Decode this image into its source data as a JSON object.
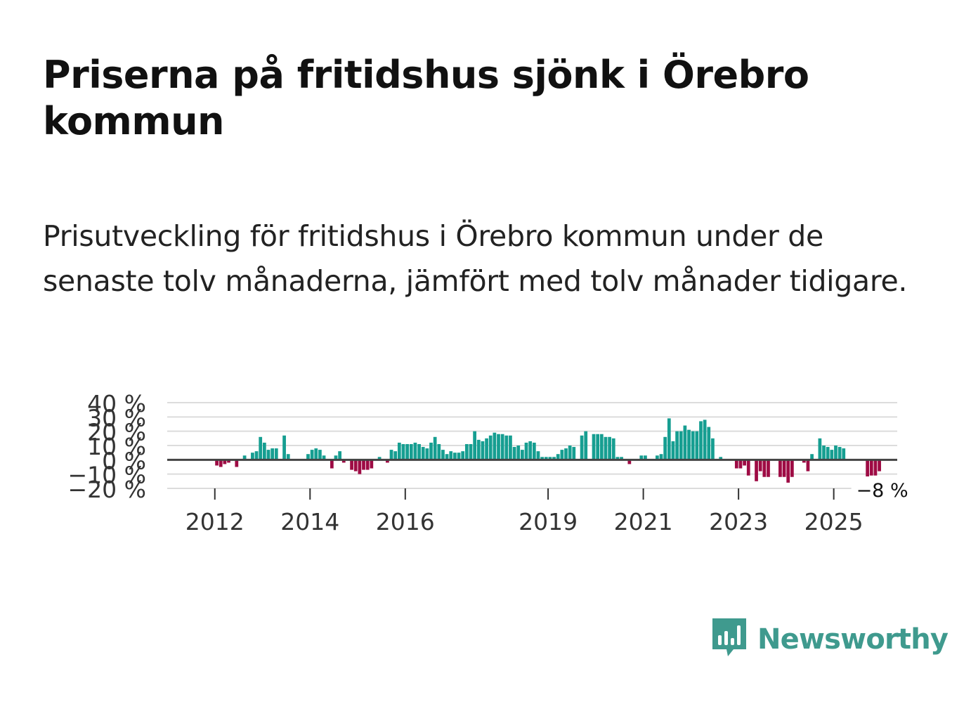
{
  "title": "Priserna på fritidshus sjönk i Örebro kommun",
  "subtitle": "Prisutveckling för fritidshus i Örebro kommun under de senaste tolv månaderna, jämfört med tolv månader tidigare.",
  "brand": {
    "name": "Newsworthy",
    "icon": "newsworthy-logo-icon"
  },
  "colors": {
    "positive": "#169e91",
    "negative": "#9e0b44",
    "grid": "#dcdcdc",
    "baseline": "#444444",
    "brand": "#3f9a8e"
  },
  "chart_data": {
    "type": "bar",
    "x_start": "2011-01",
    "x_end": "2026-04",
    "x_ticks": [
      "2012",
      "2014",
      "2016",
      "2019",
      "2021",
      "2023",
      "2025"
    ],
    "y_ticks": [
      "40 %",
      "30 %",
      "20 %",
      "10 %",
      "0 %",
      "−10 %",
      "−20 %"
    ],
    "ylim": [
      -20,
      40
    ],
    "grid": true,
    "last_value_label": "−8 %",
    "series": [
      {
        "values": [
          {
            "x": "2011-01",
            "y": null
          },
          {
            "x": "2011-02",
            "y": null
          },
          {
            "x": "2011-03",
            "y": null
          },
          {
            "x": "2011-04",
            "y": null
          },
          {
            "x": "2011-05",
            "y": null
          },
          {
            "x": "2011-06",
            "y": null
          },
          {
            "x": "2011-07",
            "y": null
          },
          {
            "x": "2011-08",
            "y": null
          },
          {
            "x": "2011-09",
            "y": null
          },
          {
            "x": "2011-10",
            "y": null
          },
          {
            "x": "2011-11",
            "y": null
          },
          {
            "x": "2011-12",
            "y": null
          },
          {
            "x": "2012-01",
            "y": -4
          },
          {
            "x": "2012-02",
            "y": -5
          },
          {
            "x": "2012-03",
            "y": -3
          },
          {
            "x": "2012-04",
            "y": -2
          },
          {
            "x": "2012-05",
            "y": null
          },
          {
            "x": "2012-06",
            "y": -5
          },
          {
            "x": "2012-07",
            "y": null
          },
          {
            "x": "2012-08",
            "y": 3
          },
          {
            "x": "2012-09",
            "y": null
          },
          {
            "x": "2012-10",
            "y": 5
          },
          {
            "x": "2012-11",
            "y": 6
          },
          {
            "x": "2012-12",
            "y": 16
          },
          {
            "x": "2013-01",
            "y": 12
          },
          {
            "x": "2013-02",
            "y": 7
          },
          {
            "x": "2013-03",
            "y": 8
          },
          {
            "x": "2013-04",
            "y": 8
          },
          {
            "x": "2013-05",
            "y": null
          },
          {
            "x": "2013-06",
            "y": 17
          },
          {
            "x": "2013-07",
            "y": 4
          },
          {
            "x": "2013-08",
            "y": null
          },
          {
            "x": "2013-09",
            "y": null
          },
          {
            "x": "2013-10",
            "y": null
          },
          {
            "x": "2013-11",
            "y": null
          },
          {
            "x": "2013-12",
            "y": 4
          },
          {
            "x": "2014-01",
            "y": 7
          },
          {
            "x": "2014-02",
            "y": 8
          },
          {
            "x": "2014-03",
            "y": 7
          },
          {
            "x": "2014-04",
            "y": 3
          },
          {
            "x": "2014-05",
            "y": null
          },
          {
            "x": "2014-06",
            "y": -6
          },
          {
            "x": "2014-07",
            "y": 3
          },
          {
            "x": "2014-08",
            "y": 6
          },
          {
            "x": "2014-09",
            "y": -2
          },
          {
            "x": "2014-10",
            "y": null
          },
          {
            "x": "2014-11",
            "y": -7
          },
          {
            "x": "2014-12",
            "y": -8
          },
          {
            "x": "2015-01",
            "y": -10
          },
          {
            "x": "2015-02",
            "y": -7
          },
          {
            "x": "2015-03",
            "y": -7
          },
          {
            "x": "2015-04",
            "y": -6
          },
          {
            "x": "2015-05",
            "y": null
          },
          {
            "x": "2015-06",
            "y": 2
          },
          {
            "x": "2015-07",
            "y": null
          },
          {
            "x": "2015-08",
            "y": -2
          },
          {
            "x": "2015-09",
            "y": 7
          },
          {
            "x": "2015-10",
            "y": 6
          },
          {
            "x": "2015-11",
            "y": 12
          },
          {
            "x": "2015-12",
            "y": 11
          },
          {
            "x": "2016-01",
            "y": 11
          },
          {
            "x": "2016-02",
            "y": 11
          },
          {
            "x": "2016-03",
            "y": 12
          },
          {
            "x": "2016-04",
            "y": 11
          },
          {
            "x": "2016-05",
            "y": 9
          },
          {
            "x": "2016-06",
            "y": 8
          },
          {
            "x": "2016-07",
            "y": 12
          },
          {
            "x": "2016-08",
            "y": 16
          },
          {
            "x": "2016-09",
            "y": 11
          },
          {
            "x": "2016-10",
            "y": 7
          },
          {
            "x": "2016-11",
            "y": 4
          },
          {
            "x": "2016-12",
            "y": 6
          },
          {
            "x": "2017-01",
            "y": 5
          },
          {
            "x": "2017-02",
            "y": 5
          },
          {
            "x": "2017-03",
            "y": 6
          },
          {
            "x": "2017-04",
            "y": 11
          },
          {
            "x": "2017-05",
            "y": 11
          },
          {
            "x": "2017-06",
            "y": 20
          },
          {
            "x": "2017-07",
            "y": 14
          },
          {
            "x": "2017-08",
            "y": 13
          },
          {
            "x": "2017-09",
            "y": 15
          },
          {
            "x": "2017-10",
            "y": 17
          },
          {
            "x": "2017-11",
            "y": 19
          },
          {
            "x": "2017-12",
            "y": 18
          },
          {
            "x": "2018-01",
            "y": 18
          },
          {
            "x": "2018-02",
            "y": 17
          },
          {
            "x": "2018-03",
            "y": 17
          },
          {
            "x": "2018-04",
            "y": 9
          },
          {
            "x": "2018-05",
            "y": 10
          },
          {
            "x": "2018-06",
            "y": 7
          },
          {
            "x": "2018-07",
            "y": 12
          },
          {
            "x": "2018-08",
            "y": 13
          },
          {
            "x": "2018-09",
            "y": 12
          },
          {
            "x": "2018-10",
            "y": 6
          },
          {
            "x": "2018-11",
            "y": 2
          },
          {
            "x": "2018-12",
            "y": 2
          },
          {
            "x": "2019-01",
            "y": 2
          },
          {
            "x": "2019-02",
            "y": 2
          },
          {
            "x": "2019-03",
            "y": 4
          },
          {
            "x": "2019-04",
            "y": 7
          },
          {
            "x": "2019-05",
            "y": 8
          },
          {
            "x": "2019-06",
            "y": 10
          },
          {
            "x": "2019-07",
            "y": 9
          },
          {
            "x": "2019-08",
            "y": null
          },
          {
            "x": "2019-09",
            "y": 17
          },
          {
            "x": "2019-10",
            "y": 20
          },
          {
            "x": "2019-11",
            "y": null
          },
          {
            "x": "2019-12",
            "y": 18
          },
          {
            "x": "2020-01",
            "y": 18
          },
          {
            "x": "2020-02",
            "y": 18
          },
          {
            "x": "2020-03",
            "y": 16
          },
          {
            "x": "2020-04",
            "y": 16
          },
          {
            "x": "2020-05",
            "y": 15
          },
          {
            "x": "2020-06",
            "y": 2
          },
          {
            "x": "2020-07",
            "y": 2
          },
          {
            "x": "2020-08",
            "y": null
          },
          {
            "x": "2020-09",
            "y": -3
          },
          {
            "x": "2020-10",
            "y": null
          },
          {
            "x": "2020-11",
            "y": null
          },
          {
            "x": "2020-12",
            "y": 3
          },
          {
            "x": "2021-01",
            "y": 3
          },
          {
            "x": "2021-02",
            "y": null
          },
          {
            "x": "2021-03",
            "y": null
          },
          {
            "x": "2021-04",
            "y": 3
          },
          {
            "x": "2021-05",
            "y": 4
          },
          {
            "x": "2021-06",
            "y": 16
          },
          {
            "x": "2021-07",
            "y": 29
          },
          {
            "x": "2021-08",
            "y": 13
          },
          {
            "x": "2021-09",
            "y": 20
          },
          {
            "x": "2021-10",
            "y": 20
          },
          {
            "x": "2021-11",
            "y": 24
          },
          {
            "x": "2021-12",
            "y": 21
          },
          {
            "x": "2022-01",
            "y": 20
          },
          {
            "x": "2022-02",
            "y": 20
          },
          {
            "x": "2022-03",
            "y": 27
          },
          {
            "x": "2022-04",
            "y": 28
          },
          {
            "x": "2022-05",
            "y": 23
          },
          {
            "x": "2022-06",
            "y": 15
          },
          {
            "x": "2022-07",
            "y": null
          },
          {
            "x": "2022-08",
            "y": 2
          },
          {
            "x": "2022-09",
            "y": null
          },
          {
            "x": "2022-10",
            "y": null
          },
          {
            "x": "2022-11",
            "y": null
          },
          {
            "x": "2022-12",
            "y": -6
          },
          {
            "x": "2023-01",
            "y": -6
          },
          {
            "x": "2023-02",
            "y": -4
          },
          {
            "x": "2023-03",
            "y": -11
          },
          {
            "x": "2023-04",
            "y": null
          },
          {
            "x": "2023-05",
            "y": -15
          },
          {
            "x": "2023-06",
            "y": -8
          },
          {
            "x": "2023-07",
            "y": -12
          },
          {
            "x": "2023-08",
            "y": -12
          },
          {
            "x": "2023-09",
            "y": null
          },
          {
            "x": "2023-10",
            "y": null
          },
          {
            "x": "2023-11",
            "y": -12
          },
          {
            "x": "2023-12",
            "y": -12
          },
          {
            "x": "2024-01",
            "y": -16
          },
          {
            "x": "2024-02",
            "y": -12
          },
          {
            "x": "2024-03",
            "y": null
          },
          {
            "x": "2024-04",
            "y": null
          },
          {
            "x": "2024-05",
            "y": -2
          },
          {
            "x": "2024-06",
            "y": -8
          },
          {
            "x": "2024-07",
            "y": 4
          },
          {
            "x": "2024-08",
            "y": null
          },
          {
            "x": "2024-09",
            "y": 15
          },
          {
            "x": "2024-10",
            "y": 10
          },
          {
            "x": "2024-11",
            "y": 9
          },
          {
            "x": "2024-12",
            "y": 7
          },
          {
            "x": "2025-01",
            "y": 10
          },
          {
            "x": "2025-02",
            "y": 9
          },
          {
            "x": "2025-03",
            "y": 8
          },
          {
            "x": "2025-04",
            "y": null
          },
          {
            "x": "2025-05",
            "y": null
          },
          {
            "x": "2025-06",
            "y": null
          },
          {
            "x": "2025-07",
            "y": null
          },
          {
            "x": "2025-08",
            "y": null
          },
          {
            "x": "2025-09",
            "y": -13
          },
          {
            "x": "2025-10",
            "y": -11
          },
          {
            "x": "2025-11",
            "y": -11
          },
          {
            "x": "2025-12",
            "y": -8
          },
          {
            "x": "2026-01",
            "y": null
          },
          {
            "x": "2026-02",
            "y": null
          },
          {
            "x": "2026-03",
            "y": null
          },
          {
            "x": "2026-04",
            "y": null
          }
        ]
      }
    ]
  }
}
